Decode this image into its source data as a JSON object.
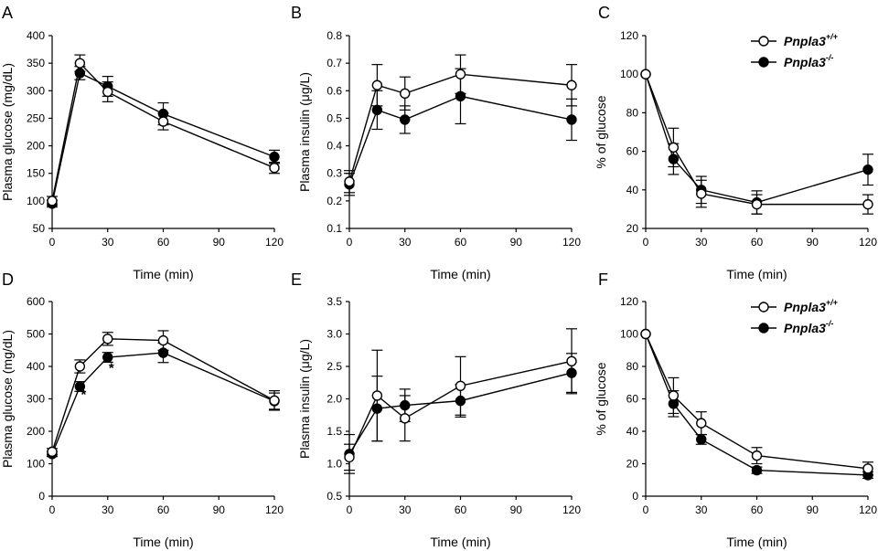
{
  "legend": {
    "wt": {
      "base": "Pnpla3",
      "sup": "+/+"
    },
    "ko": {
      "base": "Pnpla3",
      "sup": "-/-"
    }
  },
  "chart_data": [
    {
      "panel": "A",
      "type": "line",
      "xlabel": "Time (min)",
      "ylabel": "Plasma glucose (mg/dL)",
      "xlim": [
        0,
        120
      ],
      "ylim": [
        50,
        400
      ],
      "xticks": [
        0,
        30,
        60,
        90,
        120
      ],
      "yticks": [
        50,
        100,
        150,
        200,
        250,
        300,
        350,
        400
      ],
      "legend": false,
      "series": [
        {
          "key": "wt",
          "marker": "open",
          "x": [
            0,
            15,
            30,
            60,
            120
          ],
          "y": [
            100,
            350,
            298,
            244,
            160
          ],
          "err": [
            8,
            15,
            18,
            15,
            10
          ]
        },
        {
          "key": "ko",
          "marker": "filled",
          "x": [
            0,
            15,
            30,
            60,
            120
          ],
          "y": [
            95,
            332,
            308,
            258,
            180
          ],
          "err": [
            6,
            12,
            18,
            20,
            12
          ]
        }
      ],
      "annotations": []
    },
    {
      "panel": "B",
      "type": "line",
      "xlabel": "Time (min)",
      "ylabel": "Plasma insulin (μg/L)",
      "xlim": [
        0,
        120
      ],
      "ylim": [
        0.1,
        0.8
      ],
      "xticks": [
        0,
        30,
        60,
        90,
        120
      ],
      "yticks": [
        0.1,
        0.2,
        0.3,
        0.4,
        0.5,
        0.6,
        0.7,
        0.8
      ],
      "legend": false,
      "series": [
        {
          "key": "wt",
          "marker": "open",
          "x": [
            0,
            15,
            30,
            60,
            120
          ],
          "y": [
            0.27,
            0.62,
            0.59,
            0.66,
            0.62
          ],
          "err": [
            0.04,
            0.075,
            0.06,
            0.07,
            0.075
          ]
        },
        {
          "key": "ko",
          "marker": "filled",
          "x": [
            0,
            15,
            30,
            60,
            120
          ],
          "y": [
            0.26,
            0.53,
            0.495,
            0.58,
            0.495
          ],
          "err": [
            0.04,
            0.07,
            0.05,
            0.1,
            0.075
          ]
        }
      ],
      "annotations": []
    },
    {
      "panel": "C",
      "type": "line",
      "xlabel": "Time (min)",
      "ylabel": "% of glucose",
      "xlim": [
        0,
        120
      ],
      "ylim": [
        20,
        120
      ],
      "xticks": [
        0,
        30,
        60,
        90,
        120
      ],
      "yticks": [
        20,
        40,
        60,
        80,
        100,
        120
      ],
      "legend": true,
      "series": [
        {
          "key": "wt",
          "marker": "open",
          "x": [
            0,
            15,
            30,
            60,
            120
          ],
          "y": [
            100,
            62,
            38,
            32.5,
            32.5
          ],
          "err": [
            0,
            10,
            7,
            5,
            5
          ]
        },
        {
          "key": "ko",
          "marker": "filled",
          "x": [
            0,
            15,
            30,
            60,
            120
          ],
          "y": [
            100,
            56,
            40,
            33.5,
            50.5
          ],
          "err": [
            0,
            8,
            7,
            6,
            8
          ]
        }
      ],
      "annotations": []
    },
    {
      "panel": "D",
      "type": "line",
      "xlabel": "Time (min)",
      "ylabel": "Plasma glucose (mg/dL)",
      "xlim": [
        0,
        120
      ],
      "ylim": [
        0,
        600
      ],
      "xticks": [
        0,
        30,
        60,
        90,
        120
      ],
      "yticks": [
        0,
        100,
        200,
        300,
        400,
        500,
        600
      ],
      "legend": false,
      "series": [
        {
          "key": "wt",
          "marker": "open",
          "x": [
            0,
            15,
            30,
            60,
            120
          ],
          "y": [
            137,
            400,
            485,
            480,
            295
          ],
          "err": [
            10,
            20,
            20,
            30,
            30
          ]
        },
        {
          "key": "ko",
          "marker": "filled",
          "x": [
            0,
            15,
            30,
            60,
            120
          ],
          "y": [
            130,
            338,
            428,
            442,
            293
          ],
          "err": [
            8,
            15,
            15,
            30,
            25
          ]
        }
      ],
      "annotations": [
        {
          "text": "*",
          "x": 17,
          "y": 300
        },
        {
          "text": "*",
          "x": 32,
          "y": 382
        }
      ]
    },
    {
      "panel": "E",
      "type": "line",
      "xlabel": "Time (min)",
      "ylabel": "Plasma insulin (μg/L)",
      "xlim": [
        0,
        120
      ],
      "ylim": [
        0.5,
        3.5
      ],
      "xticks": [
        0,
        30,
        60,
        90,
        120
      ],
      "yticks": [
        0.5,
        1.0,
        1.5,
        2.0,
        2.5,
        3.0,
        3.5
      ],
      "legend": false,
      "series": [
        {
          "key": "wt",
          "marker": "open",
          "x": [
            0,
            15,
            30,
            60,
            120
          ],
          "y": [
            1.1,
            2.05,
            1.7,
            2.2,
            2.58
          ],
          "err": [
            0.2,
            0.7,
            0.35,
            0.45,
            0.5
          ]
        },
        {
          "key": "ko",
          "marker": "filled",
          "x": [
            0,
            15,
            30,
            60,
            120
          ],
          "y": [
            1.15,
            1.85,
            1.9,
            1.97,
            2.4
          ],
          "err": [
            0.3,
            0.5,
            0.25,
            0.25,
            0.3
          ]
        }
      ],
      "annotations": []
    },
    {
      "panel": "F",
      "type": "line",
      "xlabel": "Time (min)",
      "ylabel": "% of glucose",
      "xlim": [
        0,
        120
      ],
      "ylim": [
        0,
        120
      ],
      "xticks": [
        0,
        30,
        60,
        90,
        120
      ],
      "yticks": [
        0,
        20,
        40,
        60,
        80,
        100,
        120
      ],
      "legend": true,
      "series": [
        {
          "key": "wt",
          "marker": "open",
          "x": [
            0,
            15,
            30,
            60,
            120
          ],
          "y": [
            100,
            62,
            45,
            25,
            17
          ],
          "err": [
            0,
            11,
            7,
            5,
            4
          ]
        },
        {
          "key": "ko",
          "marker": "filled",
          "x": [
            0,
            15,
            30,
            60,
            120
          ],
          "y": [
            100,
            57,
            35,
            16,
            13
          ],
          "err": [
            0,
            8,
            3,
            2,
            2
          ]
        }
      ],
      "annotations": []
    }
  ]
}
